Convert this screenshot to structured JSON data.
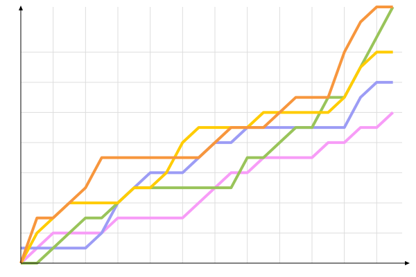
{
  "chart_data": {
    "type": "line",
    "x": [
      0,
      1,
      2,
      3,
      4,
      5,
      6,
      7,
      8,
      9,
      10,
      11,
      12,
      13,
      14,
      15,
      16,
      17,
      18,
      19,
      20,
      21,
      22,
      23
    ],
    "xlim": [
      0,
      24
    ],
    "xticks": [
      0,
      2,
      4,
      6,
      8,
      10,
      12,
      14,
      16,
      18,
      20,
      22
    ],
    "ylim": [
      0,
      8.5
    ],
    "yticks": [
      0,
      1,
      2,
      3,
      4,
      5,
      6,
      7
    ],
    "grid": true,
    "series": [
      {
        "color": "#f79cf7",
        "values": [
          0,
          0.5,
          1,
          1,
          1,
          1,
          1.5,
          1.5,
          1.5,
          1.5,
          1.5,
          2,
          2.5,
          3,
          3,
          3.5,
          3.5,
          3.5,
          3.5,
          4,
          4,
          4.5,
          4.5,
          5
        ]
      },
      {
        "color": "#9c9cf5",
        "values": [
          0.5,
          0.5,
          0.5,
          0.5,
          0.5,
          1,
          2,
          2.5,
          3,
          3,
          3,
          3.5,
          4,
          4,
          4.5,
          4.5,
          4.5,
          4.5,
          4.5,
          4.5,
          4.5,
          5.5,
          6,
          6
        ]
      },
      {
        "color": "#99c45a",
        "values": [
          0,
          0,
          0.5,
          1,
          1.5,
          1.5,
          2,
          2.5,
          2.5,
          2.5,
          2.5,
          2.5,
          2.5,
          2.5,
          3.5,
          3.5,
          4,
          4.5,
          4.5,
          5.5,
          5.5,
          6.5,
          7.5,
          8.5
        ]
      },
      {
        "color": "#ffcc00",
        "values": [
          0,
          1,
          1.5,
          2,
          2,
          2,
          2,
          2.5,
          2.5,
          3,
          4,
          4.5,
          4.5,
          4.5,
          4.5,
          5,
          5,
          5,
          5,
          5,
          5.5,
          6.5,
          7,
          7
        ]
      },
      {
        "color": "#f7963d",
        "values": [
          0,
          1.5,
          1.5,
          2,
          2.5,
          3.5,
          3.5,
          3.5,
          3.5,
          3.5,
          3.5,
          3.5,
          4,
          4.5,
          4.5,
          4.5,
          5,
          5.5,
          5.5,
          5.5,
          7,
          8,
          8.5,
          8.5
        ]
      }
    ]
  }
}
